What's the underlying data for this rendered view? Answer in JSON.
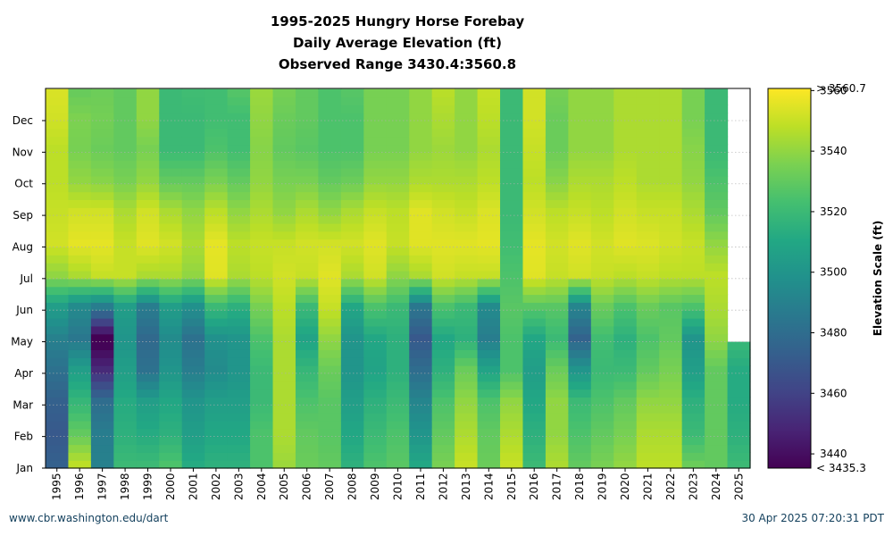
{
  "chart_data": {
    "type": "heatmap",
    "title_lines": [
      "1995-2025 Hungry Horse Forebay",
      "Daily Average Elevation (ft)",
      "Observed Range 3430.4:3560.8"
    ],
    "x_label": "",
    "y_label": "",
    "years": [
      "1995",
      "1996",
      "1997",
      "1998",
      "1999",
      "2000",
      "2001",
      "2002",
      "2003",
      "2004",
      "2005",
      "2006",
      "2007",
      "2008",
      "2009",
      "2010",
      "2011",
      "2012",
      "2013",
      "2014",
      "2015",
      "2016",
      "2017",
      "2018",
      "2019",
      "2020",
      "2021",
      "2022",
      "2023",
      "2024",
      "2025"
    ],
    "month_ticks": [
      "Jan",
      "Feb",
      "Mar",
      "Apr",
      "May",
      "Jun",
      "Jul",
      "Aug",
      "Sep",
      "Oct",
      "Nov",
      "Dec"
    ],
    "colorbar": {
      "label": "Elevation Scale (ft)",
      "min": 3435.3,
      "max": 3560.7,
      "ticks": [
        3440,
        3460,
        3480,
        3500,
        3520,
        3540,
        3560
      ],
      "min_label": "< 3435.3",
      "max_label": "> 3560.7",
      "colormap": "viridis"
    },
    "month_anchor_values_by_year": {
      "1995": [
        3474,
        3470,
        3474,
        3482,
        3490,
        3505,
        3540,
        3552,
        3550,
        3548,
        3548,
        3552,
        3554
      ],
      "1996": [
        3548,
        3530,
        3518,
        3505,
        3485,
        3495,
        3545,
        3556,
        3552,
        3540,
        3535,
        3536,
        3530
      ],
      "1997": [
        3490,
        3488,
        3480,
        3450,
        3432,
        3488,
        3550,
        3556,
        3552,
        3538,
        3532,
        3534,
        3532
      ],
      "1998": [
        3520,
        3515,
        3512,
        3505,
        3500,
        3505,
        3550,
        3550,
        3545,
        3535,
        3530,
        3530,
        3530
      ],
      "1999": [
        3520,
        3512,
        3505,
        3482,
        3478,
        3488,
        3545,
        3555,
        3552,
        3540,
        3535,
        3540,
        3540
      ],
      "2000": [
        3525,
        3515,
        3510,
        3500,
        3495,
        3505,
        3545,
        3552,
        3545,
        3530,
        3520,
        3520,
        3520
      ],
      "2001": [
        3512,
        3505,
        3500,
        3488,
        3482,
        3498,
        3540,
        3545,
        3540,
        3530,
        3520,
        3520,
        3522
      ],
      "2002": [
        3515,
        3510,
        3505,
        3495,
        3498,
        3520,
        3555,
        3556,
        3548,
        3535,
        3525,
        3522,
        3522
      ],
      "2003": [
        3515,
        3510,
        3505,
        3500,
        3500,
        3515,
        3545,
        3548,
        3540,
        3530,
        3522,
        3522,
        3528
      ],
      "2004": [
        3525,
        3525,
        3520,
        3520,
        3525,
        3535,
        3548,
        3550,
        3545,
        3540,
        3538,
        3540,
        3542
      ],
      "2005": [
        3542,
        3545,
        3545,
        3545,
        3545,
        3548,
        3552,
        3550,
        3540,
        3535,
        3530,
        3532,
        3535
      ],
      "2006": [
        3532,
        3530,
        3525,
        3518,
        3508,
        3520,
        3550,
        3552,
        3545,
        3535,
        3528,
        3530,
        3530
      ],
      "2007": [
        3530,
        3528,
        3528,
        3532,
        3540,
        3550,
        3555,
        3552,
        3540,
        3530,
        3525,
        3525,
        3525
      ],
      "2008": [
        3515,
        3510,
        3505,
        3500,
        3500,
        3510,
        3545,
        3552,
        3545,
        3532,
        3525,
        3525,
        3528
      ],
      "2009": [
        3525,
        3520,
        3515,
        3508,
        3510,
        3525,
        3552,
        3555,
        3550,
        3540,
        3535,
        3535,
        3535
      ],
      "2010": [
        3528,
        3525,
        3520,
        3515,
        3515,
        3520,
        3540,
        3550,
        3548,
        3540,
        3535,
        3535,
        3535
      ],
      "2011": [
        3510,
        3500,
        3492,
        3480,
        3470,
        3485,
        3545,
        3555,
        3555,
        3545,
        3540,
        3540,
        3540
      ],
      "2012": [
        3535,
        3530,
        3525,
        3515,
        3510,
        3525,
        3552,
        3555,
        3552,
        3545,
        3542,
        3545,
        3548
      ],
      "2013": [
        3550,
        3545,
        3540,
        3532,
        3515,
        3520,
        3550,
        3555,
        3550,
        3545,
        3540,
        3540,
        3540
      ],
      "2014": [
        3532,
        3530,
        3525,
        3508,
        3488,
        3495,
        3550,
        3556,
        3554,
        3548,
        3545,
        3548,
        3550
      ],
      "2015": [
        3550,
        3545,
        3540,
        3525,
        3525,
        3528,
        3525,
        3522,
        3520,
        3520,
        3520,
        3520,
        3520
      ],
      "2016": [
        3520,
        3515,
        3510,
        3505,
        3510,
        3528,
        3555,
        3556,
        3552,
        3548,
        3550,
        3552,
        3552
      ],
      "2017": [
        3545,
        3540,
        3540,
        3532,
        3520,
        3528,
        3550,
        3552,
        3548,
        3538,
        3532,
        3532,
        3535
      ],
      "2018": [
        3530,
        3525,
        3520,
        3500,
        3475,
        3492,
        3552,
        3555,
        3550,
        3545,
        3540,
        3540,
        3540
      ],
      "2019": [
        3535,
        3530,
        3525,
        3520,
        3522,
        3532,
        3550,
        3552,
        3548,
        3545,
        3540,
        3540,
        3540
      ],
      "2020": [
        3540,
        3535,
        3530,
        3520,
        3515,
        3525,
        3548,
        3555,
        3552,
        3548,
        3545,
        3545,
        3545
      ],
      "2021": [
        3548,
        3545,
        3540,
        3530,
        3525,
        3532,
        3550,
        3554,
        3550,
        3545,
        3545,
        3545,
        3545
      ],
      "2022": [
        3548,
        3545,
        3540,
        3535,
        3530,
        3528,
        3548,
        3552,
        3550,
        3545,
        3545,
        3545,
        3545
      ],
      "2023": [
        3532,
        3520,
        3515,
        3505,
        3500,
        3525,
        3548,
        3550,
        3545,
        3540,
        3538,
        3535,
        3535
      ],
      "2024": [
        3530,
        3530,
        3530,
        3530,
        3540,
        3545,
        3548,
        3540,
        3530,
        3525,
        3520,
        3520,
        3520
      ],
      "2025": [
        3520,
        3515,
        3512,
        3512,
        3520
      ]
    },
    "last_year_data_ends_month_fraction": 4.0,
    "grid": "dotted-horizontal"
  },
  "footer": {
    "left": "www.cbr.washington.edu/dart",
    "right": "30 Apr 2025 07:20:31 PDT"
  }
}
